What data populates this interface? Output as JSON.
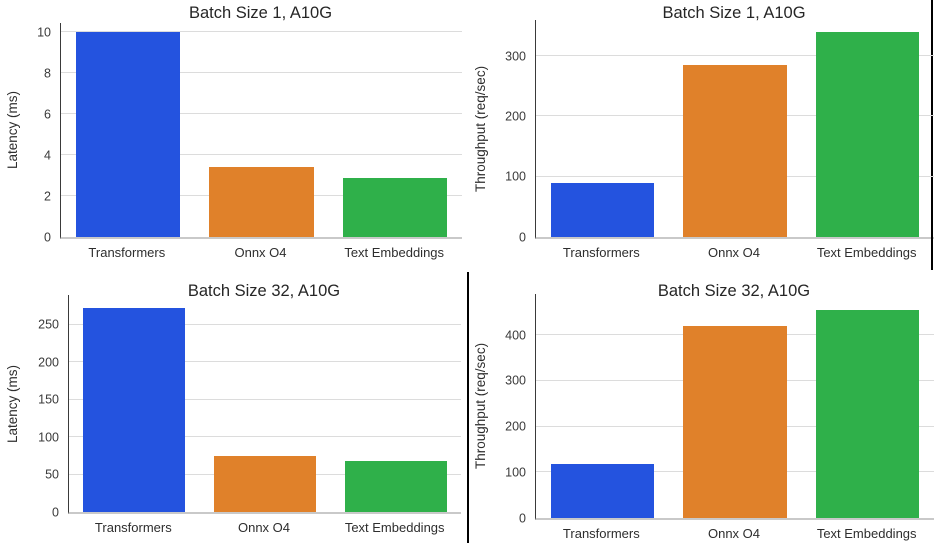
{
  "bar_colors": [
    "#2453df",
    "#e0812a",
    "#2fb04a"
  ],
  "grid_color": "#dcdcdc",
  "spine_color": "#3a3a3a",
  "chart_data": [
    {
      "type": "bar",
      "title": "Batch Size 1, A10G",
      "ylabel": "Latency (ms)",
      "xlabel": "",
      "categories": [
        "Transformers",
        "Onnx O4",
        "Text Embeddings"
      ],
      "values": [
        10.0,
        3.4,
        2.9
      ],
      "yticks": [
        0,
        2,
        4,
        6,
        8,
        10
      ],
      "ylim": [
        0,
        10.45
      ],
      "grid": true,
      "legend": "none"
    },
    {
      "type": "bar",
      "title": "Batch Size 1, A10G",
      "ylabel": "Throughput (req/sec)",
      "xlabel": "",
      "categories": [
        "Transformers",
        "Onnx O4",
        "Text Embeddings"
      ],
      "values": [
        90,
        286,
        340
      ],
      "yticks": [
        0,
        100,
        200,
        300
      ],
      "ylim": [
        0,
        360
      ],
      "grid": true,
      "legend": "none"
    },
    {
      "type": "bar",
      "title": "Batch Size 32, A10G",
      "ylabel": "Latency (ms)",
      "xlabel": "",
      "categories": [
        "Transformers",
        "Onnx O4",
        "Text Embeddings"
      ],
      "values": [
        272,
        75,
        68
      ],
      "yticks": [
        0,
        50,
        100,
        150,
        200,
        250
      ],
      "ylim": [
        0,
        290
      ],
      "grid": true,
      "legend": "none"
    },
    {
      "type": "bar",
      "title": "Batch Size 32, A10G",
      "ylabel": "Throughput (req/sec)",
      "xlabel": "",
      "categories": [
        "Transformers",
        "Onnx O4",
        "Text Embeddings"
      ],
      "values": [
        118,
        420,
        455
      ],
      "yticks": [
        0,
        100,
        200,
        300,
        400
      ],
      "ylim": [
        0,
        490
      ],
      "grid": true,
      "legend": "none"
    }
  ]
}
